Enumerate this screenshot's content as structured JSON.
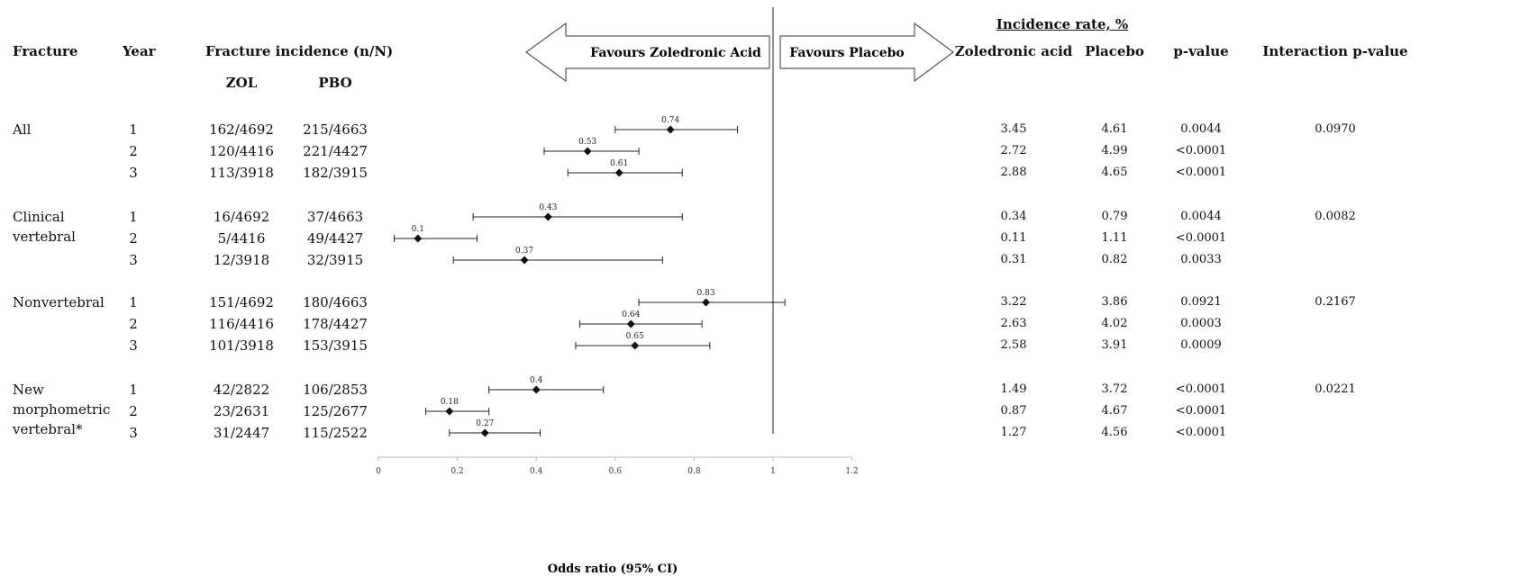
{
  "headers": {
    "fracture": "Fracture",
    "year": "Year",
    "incidence": "Fracture incidence (n/N)",
    "zol": "ZOL",
    "pbo": "PBO",
    "incidence_rate": "Incidence rate, %",
    "zoledronic_acid": "Zoledronic acid",
    "placebo": "Placebo",
    "p_value": "p-value",
    "interaction_p_value": "Interaction p-value"
  },
  "arrows": {
    "left": "Favours Zoledronic Acid",
    "right": "Favours Placebo"
  },
  "groups": [
    {
      "label": [
        "All"
      ],
      "interaction_p": "0.0970",
      "rows": [
        {
          "year": "1",
          "zol": "162/4692",
          "pbo": "215/4663",
          "rate_zol": "3.45",
          "rate_pbo": "4.61",
          "p": "0.0044"
        },
        {
          "year": "2",
          "zol": "120/4416",
          "pbo": "221/4427",
          "rate_zol": "2.72",
          "rate_pbo": "4.99",
          "p": "<0.0001"
        },
        {
          "year": "3",
          "zol": "113/3918",
          "pbo": "182/3915",
          "rate_zol": "2.88",
          "rate_pbo": "4.65",
          "p": "<0.0001"
        }
      ]
    },
    {
      "label": [
        "Clinical",
        "vertebral"
      ],
      "interaction_p": "0.0082",
      "rows": [
        {
          "year": "1",
          "zol": "16/4692",
          "pbo": "37/4663",
          "rate_zol": "0.34",
          "rate_pbo": "0.79",
          "p": "0.0044"
        },
        {
          "year": "2",
          "zol": "5/4416",
          "pbo": "49/4427",
          "rate_zol": "0.11",
          "rate_pbo": "1.11",
          "p": "<0.0001"
        },
        {
          "year": "3",
          "zol": "12/3918",
          "pbo": "32/3915",
          "rate_zol": "0.31",
          "rate_pbo": "0.82",
          "p": "0.0033"
        }
      ]
    },
    {
      "label": [
        "Nonvertebral"
      ],
      "interaction_p": "0.2167",
      "rows": [
        {
          "year": "1",
          "zol": "151/4692",
          "pbo": "180/4663",
          "rate_zol": "3.22",
          "rate_pbo": "3.86",
          "p": "0.0921"
        },
        {
          "year": "2",
          "zol": "116/4416",
          "pbo": "178/4427",
          "rate_zol": "2.63",
          "rate_pbo": "4.02",
          "p": "0.0003"
        },
        {
          "year": "3",
          "zol": "101/3918",
          "pbo": "153/3915",
          "rate_zol": "2.58",
          "rate_pbo": "3.91",
          "p": "0.0009"
        }
      ]
    },
    {
      "label": [
        "New",
        "morphometric",
        "vertebral*"
      ],
      "interaction_p": "0.0221",
      "rows": [
        {
          "year": "1",
          "zol": "42/2822",
          "pbo": "106/2853",
          "rate_zol": "1.49",
          "rate_pbo": "3.72",
          "p": "<0.0001"
        },
        {
          "year": "2",
          "zol": "23/2631",
          "pbo": "125/2677",
          "rate_zol": "0.87",
          "rate_pbo": "4.67",
          "p": "<0.0001"
        },
        {
          "year": "3",
          "zol": "31/2447",
          "pbo": "115/2522",
          "rate_zol": "1.27",
          "rate_pbo": "4.56",
          "p": "<0.0001"
        }
      ]
    }
  ],
  "chart_data": {
    "type": "forest",
    "xlabel": "Odds ratio (95% CI)",
    "xlim": [
      0,
      1.2
    ],
    "xticks": [
      0,
      0.2,
      0.4,
      0.6,
      0.8,
      1,
      1.2
    ],
    "xtick_labels": [
      "0",
      "0.2",
      "0.4",
      "0.6",
      "0.8",
      "1",
      "1.2"
    ],
    "reference_line": 1,
    "points": [
      {
        "group": "All",
        "year": "1",
        "or": 0.74,
        "label": "0.74",
        "lo": 0.6,
        "hi": 0.91
      },
      {
        "group": "All",
        "year": "2",
        "or": 0.53,
        "label": "0.53",
        "lo": 0.42,
        "hi": 0.66
      },
      {
        "group": "All",
        "year": "3",
        "or": 0.61,
        "label": "0.61",
        "lo": 0.48,
        "hi": 0.77
      },
      {
        "group": "Clinical vertebral",
        "year": "1",
        "or": 0.43,
        "label": "0.43",
        "lo": 0.24,
        "hi": 0.77
      },
      {
        "group": "Clinical vertebral",
        "year": "2",
        "or": 0.1,
        "label": "0.1",
        "lo": 0.04,
        "hi": 0.25
      },
      {
        "group": "Clinical vertebral",
        "year": "3",
        "or": 0.37,
        "label": "0.37",
        "lo": 0.19,
        "hi": 0.72
      },
      {
        "group": "Nonvertebral",
        "year": "1",
        "or": 0.83,
        "label": "0.83",
        "lo": 0.66,
        "hi": 1.03
      },
      {
        "group": "Nonvertebral",
        "year": "2",
        "or": 0.64,
        "label": "0.64",
        "lo": 0.51,
        "hi": 0.82
      },
      {
        "group": "Nonvertebral",
        "year": "3",
        "or": 0.65,
        "label": "0.65",
        "lo": 0.5,
        "hi": 0.84
      },
      {
        "group": "New morphometric vertebral*",
        "year": "1",
        "or": 0.4,
        "label": "0.4",
        "lo": 0.28,
        "hi": 0.57
      },
      {
        "group": "New morphometric vertebral*",
        "year": "2",
        "or": 0.18,
        "label": "0.18",
        "lo": 0.12,
        "hi": 0.28
      },
      {
        "group": "New morphometric vertebral*",
        "year": "3",
        "or": 0.27,
        "label": "0.27",
        "lo": 0.18,
        "hi": 0.41
      }
    ]
  }
}
